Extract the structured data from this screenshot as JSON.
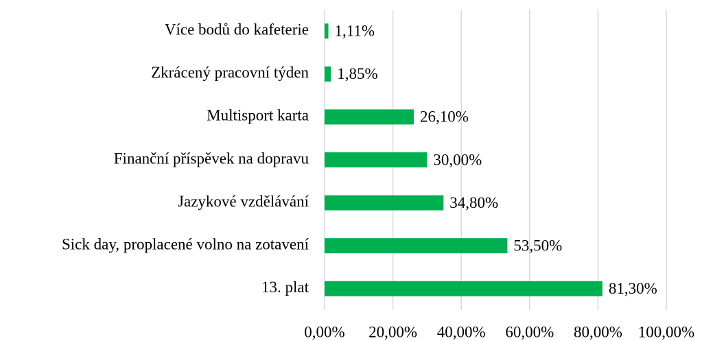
{
  "chart_data": {
    "type": "bar",
    "orientation": "horizontal",
    "categories": [
      "Více bodů do kafeterie",
      "Zkrácený pracovní týden",
      "Multisport karta",
      "Finanční příspěvek na dopravu",
      "Jazykové vzdělávání",
      "Sick day, proplacené volno na zotavení",
      "13. plat"
    ],
    "values": [
      1.11,
      1.85,
      26.1,
      30.0,
      34.8,
      53.5,
      81.3
    ],
    "value_labels": [
      "1,11%",
      "1,85%",
      "26,10%",
      "30,00%",
      "34,80%",
      "53,50%",
      "81,30%"
    ],
    "color": "#00b050",
    "xlim": [
      0,
      100
    ],
    "xticks": [
      {
        "value": 0,
        "label": "0,00%"
      },
      {
        "value": 20,
        "label": "20,00%"
      },
      {
        "value": 40,
        "label": "40,00%"
      },
      {
        "value": 60,
        "label": "60,00%"
      },
      {
        "value": 80,
        "label": "80,00%"
      },
      {
        "value": 100,
        "label": "100,00%"
      }
    ],
    "grid": true
  }
}
